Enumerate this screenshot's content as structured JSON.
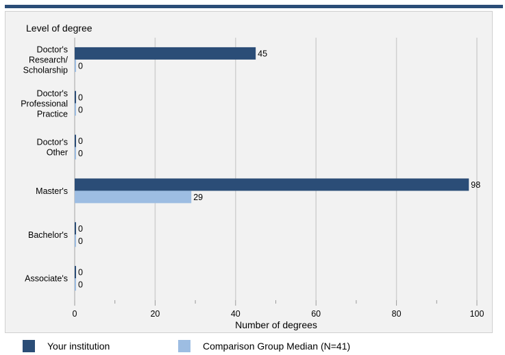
{
  "chart_data": {
    "type": "bar",
    "orientation": "horizontal",
    "ylabel": "Level of degree",
    "xlabel": "Number of degrees",
    "categories": [
      "Doctor's Research/ Scholarship",
      "Doctor's Professional Practice",
      "Doctor's Other",
      "Master's",
      "Bachelor's",
      "Associate's"
    ],
    "category_lines": [
      [
        "Doctor's",
        "Research/",
        "Scholarship"
      ],
      [
        "Doctor's",
        "Professional",
        "Practice"
      ],
      [
        "Doctor's",
        "Other"
      ],
      [
        "Master's"
      ],
      [
        "Bachelor's"
      ],
      [
        "Associate's"
      ]
    ],
    "series": [
      {
        "name": "Your institution",
        "color": "#2b4d77",
        "values": [
          45,
          0,
          0,
          98,
          0,
          0
        ]
      },
      {
        "name": "Comparison Group Median (N=41)",
        "color": "#9dbde2",
        "values": [
          0,
          0,
          0,
          29,
          0,
          0
        ]
      }
    ],
    "xlim": [
      0,
      100
    ],
    "xticks": [
      0,
      20,
      40,
      60,
      80,
      100
    ],
    "grid": true,
    "legend_position": "bottom"
  }
}
